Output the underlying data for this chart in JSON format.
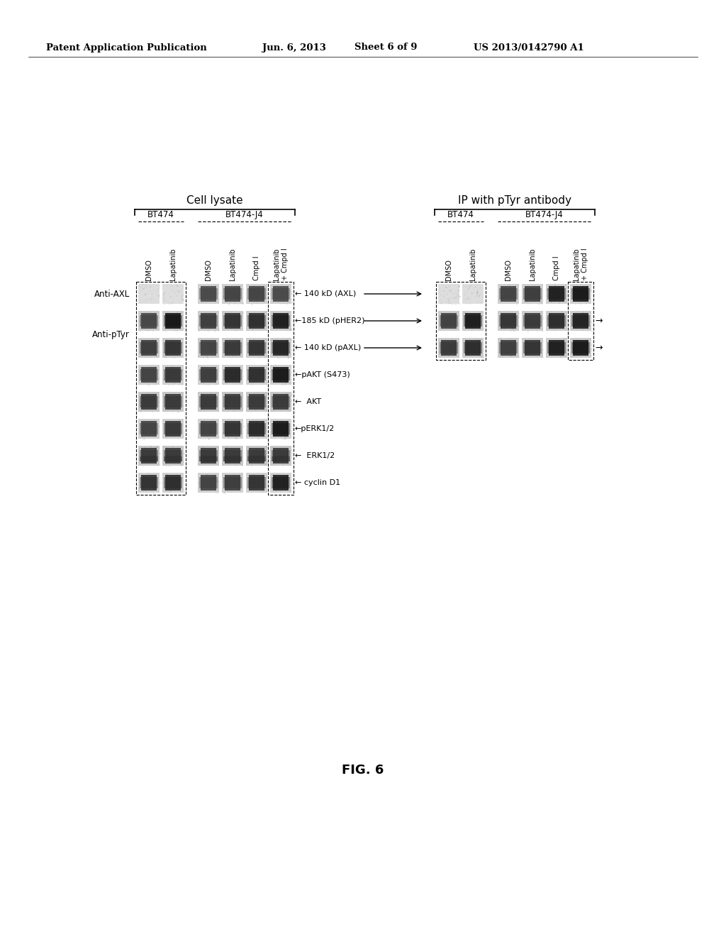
{
  "bg_color": "#ffffff",
  "header_text": "Patent Application Publication",
  "header_date": "Jun. 6, 2013",
  "header_sheet": "Sheet 6 of 9",
  "header_patent": "US 2013/0142790 A1",
  "fig_label": "FIG. 6",
  "section1_title": "Cell lysate",
  "section2_title": "IP with pTyr antibody",
  "bt474_label": "BT474",
  "bt474j4_label": "BT474-J4",
  "col_labels": [
    "DMSO",
    "Lapatinib",
    "DMSO",
    "Lapatinib",
    "Cmpd I",
    "Lapatinib\n+ Cmpd I"
  ],
  "annotations_left": [
    "← 140 kD (AXL)",
    "←185 kD (pHER2)",
    "← 140 kD (pAXL)",
    "←pAKT (S473)",
    "←  AKT",
    "←pERK1/2",
    "←  ERK1/2",
    "← cyclin D1"
  ],
  "row_label_left": [
    "Anti-AXL",
    "Anti-pTyr"
  ]
}
